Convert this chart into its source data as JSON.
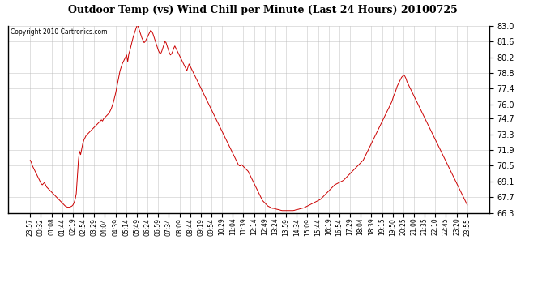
{
  "title": "Outdoor Temp (vs) Wind Chill per Minute (Last 24 Hours) 20100725",
  "copyright": "Copyright 2010 Cartronics.com",
  "line_color": "#cc0000",
  "background_color": "#ffffff",
  "grid_color": "#bbbbbb",
  "ylim": [
    66.3,
    83.0
  ],
  "yticks": [
    66.3,
    67.7,
    69.1,
    70.5,
    71.9,
    73.3,
    74.7,
    76.0,
    77.4,
    78.8,
    80.2,
    81.6,
    83.0
  ],
  "xtick_labels": [
    "23:57",
    "00:32",
    "01:08",
    "01:44",
    "02:19",
    "02:54",
    "03:29",
    "04:04",
    "04:39",
    "05:14",
    "05:49",
    "06:24",
    "06:59",
    "07:34",
    "08:09",
    "08:44",
    "09:19",
    "09:54",
    "10:29",
    "11:04",
    "11:39",
    "12:14",
    "12:49",
    "13:24",
    "13:59",
    "14:34",
    "15:09",
    "15:44",
    "16:19",
    "16:54",
    "17:29",
    "18:04",
    "18:39",
    "19:15",
    "19:50",
    "20:25",
    "21:00",
    "21:35",
    "22:10",
    "22:45",
    "23:20",
    "23:55"
  ],
  "n_xticks": 42,
  "data_y": [
    71.0,
    70.8,
    70.5,
    70.3,
    70.1,
    69.9,
    69.7,
    69.5,
    69.3,
    69.1,
    68.9,
    68.8,
    68.9,
    69.0,
    68.8,
    68.6,
    68.5,
    68.4,
    68.3,
    68.2,
    68.1,
    68.0,
    67.9,
    67.8,
    67.7,
    67.6,
    67.5,
    67.4,
    67.3,
    67.2,
    67.1,
    67.0,
    66.9,
    66.85,
    66.8,
    66.8,
    66.8,
    66.85,
    66.9,
    67.0,
    67.2,
    67.5,
    68.0,
    69.5,
    71.0,
    71.8,
    71.5,
    72.0,
    72.5,
    72.8,
    73.0,
    73.2,
    73.3,
    73.4,
    73.5,
    73.6,
    73.7,
    73.8,
    73.9,
    74.0,
    74.1,
    74.2,
    74.3,
    74.4,
    74.5,
    74.6,
    74.5,
    74.7,
    74.8,
    74.9,
    75.0,
    75.1,
    75.2,
    75.4,
    75.6,
    75.9,
    76.2,
    76.6,
    77.0,
    77.5,
    78.0,
    78.5,
    79.0,
    79.3,
    79.6,
    79.8,
    80.0,
    80.2,
    80.4,
    79.8,
    80.5,
    80.8,
    81.2,
    81.6,
    82.0,
    82.3,
    82.6,
    82.9,
    83.1,
    82.8,
    82.5,
    82.2,
    81.9,
    81.7,
    81.5,
    81.6,
    81.8,
    82.0,
    82.2,
    82.4,
    82.6,
    82.5,
    82.3,
    82.0,
    81.7,
    81.4,
    81.1,
    80.8,
    80.6,
    80.5,
    80.7,
    81.0,
    81.3,
    81.6,
    81.5,
    81.2,
    80.9,
    80.6,
    80.4,
    80.5,
    80.7,
    81.0,
    81.2,
    81.0,
    80.8,
    80.6,
    80.4,
    80.2,
    80.0,
    79.8,
    79.6,
    79.4,
    79.2,
    79.0,
    79.3,
    79.6,
    79.4,
    79.2,
    79.0,
    78.8,
    78.6,
    78.4,
    78.2,
    78.0,
    77.8,
    77.6,
    77.4,
    77.2,
    77.0,
    76.8,
    76.6,
    76.4,
    76.2,
    76.0,
    75.8,
    75.6,
    75.4,
    75.2,
    75.0,
    74.8,
    74.6,
    74.4,
    74.2,
    74.0,
    73.8,
    73.6,
    73.4,
    73.2,
    73.0,
    72.8,
    72.6,
    72.4,
    72.2,
    72.0,
    71.8,
    71.6,
    71.4,
    71.2,
    71.0,
    70.8,
    70.6,
    70.5,
    70.5,
    70.6,
    70.5,
    70.4,
    70.3,
    70.2,
    70.1,
    70.0,
    69.8,
    69.6,
    69.4,
    69.2,
    69.0,
    68.8,
    68.6,
    68.4,
    68.2,
    68.0,
    67.8,
    67.6,
    67.4,
    67.3,
    67.2,
    67.1,
    67.0,
    66.9,
    66.85,
    66.8,
    66.75,
    66.7,
    66.7,
    66.68,
    66.65,
    66.62,
    66.6,
    66.58,
    66.55,
    66.52,
    66.5,
    66.5,
    66.5,
    66.5,
    66.5,
    66.5,
    66.5,
    66.5,
    66.5,
    66.5,
    66.5,
    66.52,
    66.55,
    66.58,
    66.6,
    66.62,
    66.65,
    66.68,
    66.7,
    66.72,
    66.75,
    66.8,
    66.85,
    66.9,
    66.95,
    67.0,
    67.05,
    67.1,
    67.15,
    67.2,
    67.25,
    67.3,
    67.35,
    67.4,
    67.45,
    67.5,
    67.6,
    67.7,
    67.8,
    67.9,
    68.0,
    68.1,
    68.2,
    68.3,
    68.4,
    68.5,
    68.6,
    68.7,
    68.8,
    68.85,
    68.9,
    68.95,
    69.0,
    69.05,
    69.1,
    69.15,
    69.2,
    69.3,
    69.4,
    69.5,
    69.6,
    69.7,
    69.8,
    69.9,
    70.0,
    70.1,
    70.2,
    70.3,
    70.4,
    70.5,
    70.6,
    70.7,
    70.8,
    70.9,
    71.0,
    71.2,
    71.4,
    71.6,
    71.8,
    72.0,
    72.2,
    72.4,
    72.6,
    72.8,
    73.0,
    73.2,
    73.4,
    73.6,
    73.8,
    74.0,
    74.2,
    74.4,
    74.6,
    74.8,
    75.0,
    75.2,
    75.4,
    75.6,
    75.8,
    76.0,
    76.2,
    76.5,
    76.8,
    77.0,
    77.3,
    77.6,
    77.8,
    78.0,
    78.2,
    78.4,
    78.5,
    78.6,
    78.5,
    78.3,
    78.0,
    77.8,
    77.6,
    77.4,
    77.2,
    77.0,
    76.8,
    76.6,
    76.4,
    76.2,
    76.0,
    75.8,
    75.6,
    75.4,
    75.2,
    75.0,
    74.8,
    74.6,
    74.4,
    74.2,
    74.0,
    73.8,
    73.6,
    73.4,
    73.2,
    73.0,
    72.8,
    72.6,
    72.4,
    72.2,
    72.0,
    71.8,
    71.6,
    71.4,
    71.2,
    71.0,
    70.8,
    70.6,
    70.4,
    70.2,
    70.0,
    69.8,
    69.6,
    69.4,
    69.2,
    69.0,
    68.8,
    68.6,
    68.4,
    68.2,
    68.0,
    67.8,
    67.6,
    67.4,
    67.2,
    67.0
  ]
}
